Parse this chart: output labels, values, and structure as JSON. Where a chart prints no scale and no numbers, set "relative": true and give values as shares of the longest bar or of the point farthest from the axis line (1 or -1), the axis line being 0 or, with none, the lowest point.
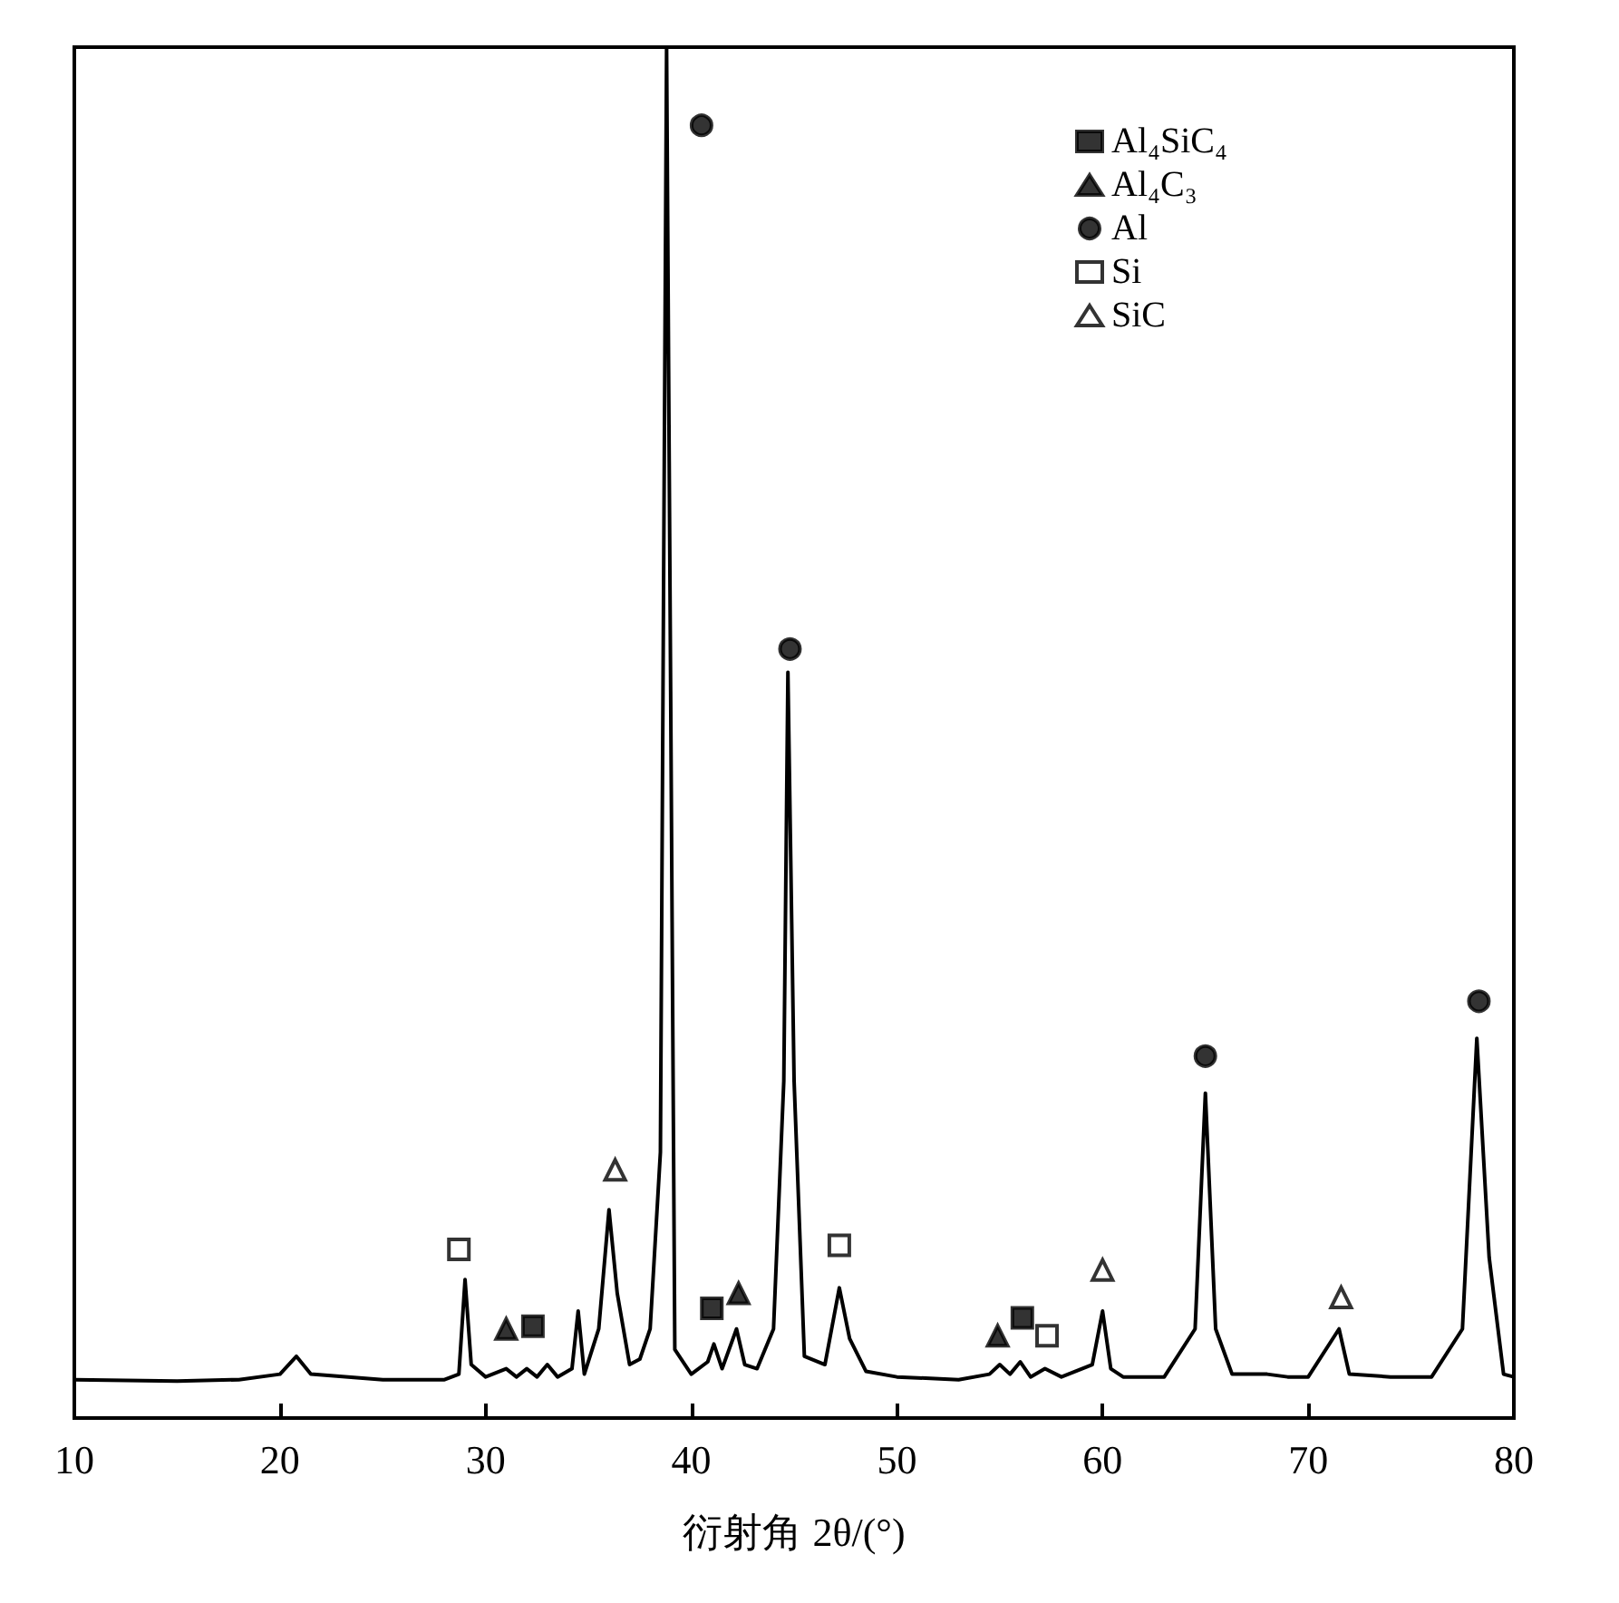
{
  "chart_data": {
    "type": "line",
    "relative": true,
    "xlabel": "衍射角 2θ/(°)",
    "xlim": [
      10,
      80
    ],
    "xticks": [
      10,
      20,
      30,
      40,
      50,
      60,
      70,
      80
    ],
    "grid": false,
    "legend": "top right",
    "line_style": "solid",
    "marker": "none",
    "series": [
      {
        "color": "#000000",
        "x": [
          10,
          15,
          18,
          20,
          20.8,
          21.5,
          25,
          28,
          28.7,
          29.0,
          29.3,
          30,
          31,
          31.5,
          32,
          32.5,
          33,
          33.5,
          34.2,
          34.5,
          34.8,
          35.5,
          36.0,
          36.4,
          37,
          37.5,
          38,
          38.5,
          38.8,
          39.2,
          40,
          40.8,
          41.1,
          41.5,
          42.2,
          42.6,
          43.2,
          44,
          44.5,
          44.7,
          45,
          45.5,
          46.5,
          47.2,
          47.7,
          48.5,
          50,
          53,
          54.5,
          55,
          55.5,
          56,
          56.5,
          57.2,
          58,
          59.5,
          60,
          60.4,
          61,
          63,
          64.5,
          65,
          65.5,
          66.3,
          68,
          69,
          70,
          71.5,
          72,
          74,
          76,
          77.5,
          78.2,
          78.8,
          79.5,
          80
        ],
        "values": [
          0.028,
          0.027,
          0.028,
          0.032,
          0.045,
          0.032,
          0.028,
          0.028,
          0.032,
          0.101,
          0.039,
          0.03,
          0.036,
          0.03,
          0.036,
          0.03,
          0.039,
          0.03,
          0.036,
          0.078,
          0.032,
          0.065,
          0.152,
          0.091,
          0.039,
          0.043,
          0.065,
          0.194,
          1,
          0.05,
          0.032,
          0.041,
          0.054,
          0.036,
          0.065,
          0.039,
          0.036,
          0.065,
          0.246,
          0.544,
          0.246,
          0.045,
          0.039,
          0.095,
          0.058,
          0.034,
          0.03,
          0.028,
          0.032,
          0.039,
          0.032,
          0.041,
          0.03,
          0.036,
          0.03,
          0.039,
          0.078,
          0.036,
          0.03,
          0.03,
          0.065,
          0.237,
          0.065,
          0.032,
          0.032,
          0.03,
          0.03,
          0.065,
          0.032,
          0.03,
          0.03,
          0.065,
          0.277,
          0.117,
          0.032,
          0.03
        ]
      },
      {
        "type": "scatter",
        "name": "Al₄SiC₄",
        "color": "#000000",
        "marker": "square",
        "x": [
          32.3,
          41.0,
          56.1
        ],
        "values": [
          0.067,
          0.08,
          0.073
        ]
      },
      {
        "type": "scatter",
        "name": "Al₄C₃",
        "color": "#000000",
        "marker": "triangle",
        "x": [
          31.0,
          42.3,
          54.9
        ],
        "values": [
          0.065,
          0.091,
          0.06
        ]
      },
      {
        "type": "scatter",
        "name": "Al",
        "color": "#000000",
        "marker": "circle",
        "x": [
          40.5,
          44.8,
          65.0,
          78.3
        ],
        "values": [
          0.943,
          0.561,
          0.264,
          0.304
        ]
      },
      {
        "type": "scatter",
        "name": "Si",
        "color": "#ffffff",
        "marker": "square",
        "x": [
          28.7,
          47.2,
          57.3
        ],
        "values": [
          0.123,
          0.126,
          0.06
        ]
      },
      {
        "type": "scatter",
        "name": "SiC",
        "color": "#ffffff",
        "marker": "triangle",
        "x": [
          36.3,
          60.0,
          71.6
        ],
        "values": [
          0.181,
          0.108,
          0.088
        ]
      }
    ]
  }
}
